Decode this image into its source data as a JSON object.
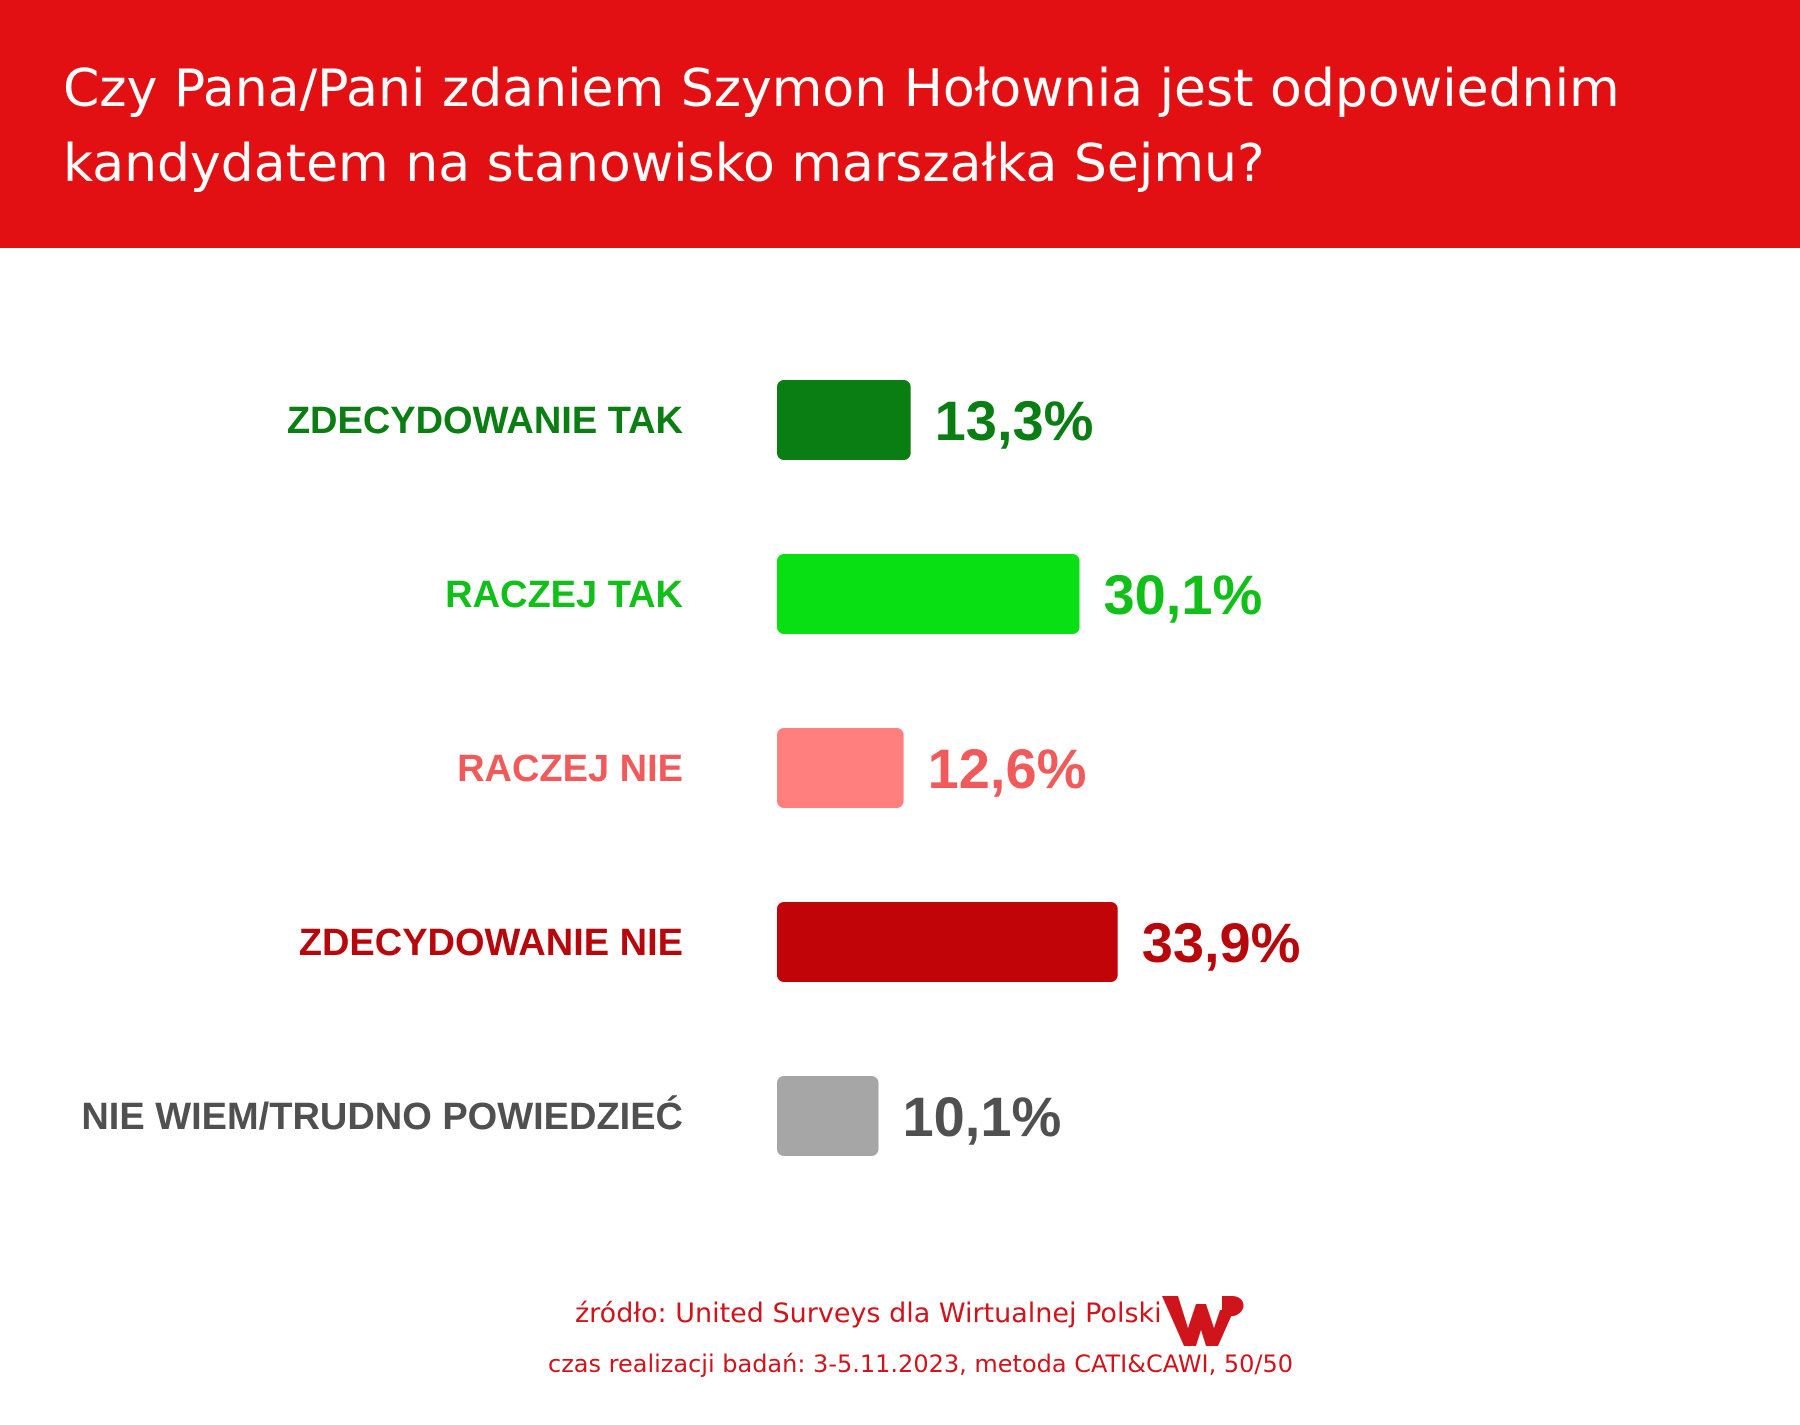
{
  "header": {
    "title_line1": "Czy Pana/Pani zdaniem Szymon Hołownia jest odpowiednim",
    "title_line2": "kandydatem na stanowisko marszałka Sejmu?",
    "background_color": "#e31013"
  },
  "chart_data": {
    "type": "bar",
    "orientation": "horizontal",
    "title": "Czy Pana/Pani zdaniem Szymon Hołownia jest odpowiednim kandydatem na stanowisko marszałka Sejmu?",
    "categories": [
      "ZDECYDOWANIE TAK",
      "RACZEJ TAK",
      "RACZEJ NIE",
      "ZDECYDOWANIE NIE",
      "NIE WIEM/TRUDNO POWIEDZIEĆ"
    ],
    "values": [
      13.3,
      30.1,
      12.6,
      33.9,
      10.1
    ],
    "value_labels": [
      "13,3%",
      "30,1%",
      "12,6%",
      "33,9%",
      "10,1%"
    ],
    "bar_colors": [
      "#0a7d13",
      "#08e013",
      "#ff7f7f",
      "#c00408",
      "#a6a6a6"
    ],
    "label_colors": [
      "#0a7d13",
      "#10c018",
      "#f05a5a",
      "#b8070b",
      "#505050"
    ],
    "xlim": [
      0,
      40
    ],
    "grid": false,
    "legend": "none"
  },
  "footer": {
    "source": "źródło: United Surveys dla Wirtualnej Polski",
    "method": "czas realizacji badań: 3-5.11.2023, metoda CATI&CAWI, 50/50",
    "logo": "wp-logo",
    "color": "#d0141b"
  }
}
